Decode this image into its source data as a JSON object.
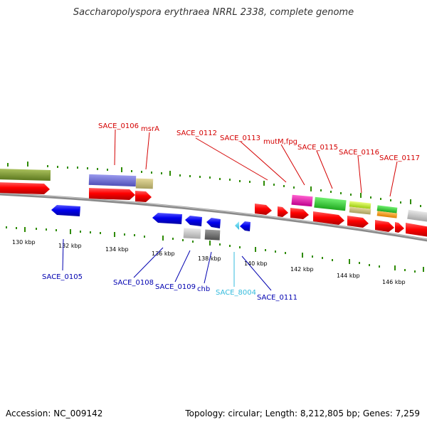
{
  "title": "Saccharopolyspora erythraea NRRL 2338, complete genome",
  "accession": "Accession: NC_009142",
  "summary": "Topology: circular; Length: 8,212,805 bp; Genes: 7,259",
  "ticks": [
    {
      "label": "130 kbp"
    },
    {
      "label": "132 kbp"
    },
    {
      "label": "134 kbp"
    },
    {
      "label": "136 kbp"
    },
    {
      "label": "138 kbp"
    },
    {
      "label": "140 kbp"
    },
    {
      "label": "142 kbp"
    },
    {
      "label": "144 kbp"
    },
    {
      "label": "146 kbp"
    }
  ],
  "gene_labels": [
    {
      "text": "SACE_0106",
      "color": "#d40000"
    },
    {
      "text": "msrA",
      "color": "#d40000"
    },
    {
      "text": "SACE_0112",
      "color": "#d40000"
    },
    {
      "text": "SACE_0113",
      "color": "#d40000"
    },
    {
      "text": "mutM,fpg",
      "color": "#d40000"
    },
    {
      "text": "SACE_0115",
      "color": "#d40000"
    },
    {
      "text": "SACE_0116",
      "color": "#d40000"
    },
    {
      "text": "SACE_0117",
      "color": "#d40000"
    },
    {
      "text": "SACE_0105",
      "color": "#0000b0"
    },
    {
      "text": "SACE_0108",
      "color": "#0000b0"
    },
    {
      "text": "SACE_0109",
      "color": "#0000b0"
    },
    {
      "text": "chb",
      "color": "#0000b0"
    },
    {
      "text": "SACE_8004",
      "color": "#33bbdd"
    },
    {
      "text": "SACE_0111",
      "color": "#0000b0"
    }
  ],
  "colors": {
    "forward_cds": "#ff0000",
    "reverse_cds": "#0000ee",
    "tick_green": "#2e8b00",
    "backbone": "#888888"
  }
}
